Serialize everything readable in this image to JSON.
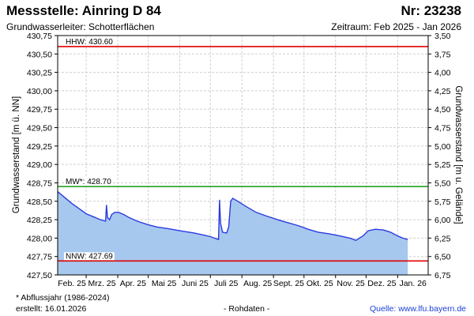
{
  "header": {
    "station": "Messstelle: Ainring D 84",
    "number": "Nr: 23238",
    "aquifer": "Grundwasserleiter:   Schotterflächen",
    "period": "Zeitraum: Feb 2025 - Jan 2026"
  },
  "footer": {
    "note": "* Abflussjahr (1986-2024)",
    "created": "erstellt:  16.01.2026",
    "raw": "- Rohdaten -",
    "source_label": "Quelle:",
    "source_url": "www.lfu.bayern.de"
  },
  "chart_data": {
    "type": "area",
    "ylabel_left": "Grundwasserstand [m ü. NN]",
    "ylabel_right": "Grundwasserstand [m u. Gelände]",
    "ylim": [
      427.5,
      430.75
    ],
    "ylim_right": [
      6.75,
      3.5
    ],
    "yticks_left": [
      "427,50",
      "427,75",
      "428,00",
      "428,25",
      "428,50",
      "428,75",
      "429,00",
      "429,25",
      "429,50",
      "429,75",
      "430,00",
      "430,25",
      "430,50",
      "430,75"
    ],
    "yticks_right": [
      "6,75",
      "6,50",
      "6,25",
      "6,00",
      "5,75",
      "5,50",
      "5,25",
      "5,00",
      "4,75",
      "4,50",
      "4,25",
      "4,00",
      "3,75",
      "3,50"
    ],
    "xticks": [
      "Feb. 25",
      "Mrz. 25",
      "Apr. 25",
      "Mai 25",
      "Juni 25",
      "Juli 25",
      "Aug. 25",
      "Sept. 25",
      "Okt. 25",
      "Nov. 25",
      "Dez. 25",
      "Jan. 26"
    ],
    "xlim": [
      "2025-02-01",
      "2026-01-31"
    ],
    "grid": true,
    "reference_lines": [
      {
        "label": "HHW: 430.60",
        "value": 430.6,
        "color": "#e00000"
      },
      {
        "label": "MW*: 428.70",
        "value": 428.7,
        "color": "#119911"
      },
      {
        "label": "NNW: 427.69",
        "value": 427.69,
        "color": "#e00000"
      }
    ],
    "series": [
      {
        "color": "#2a3be0",
        "fill": "#a7c8ee",
        "points": [
          [
            "2025-02-01",
            428.63
          ],
          [
            "2025-02-08",
            428.55
          ],
          [
            "2025-02-15",
            428.47
          ],
          [
            "2025-02-22",
            428.4
          ],
          [
            "2025-03-01",
            428.33
          ],
          [
            "2025-03-08",
            428.29
          ],
          [
            "2025-03-15",
            428.25
          ],
          [
            "2025-03-20",
            428.23
          ],
          [
            "2025-03-21",
            428.45
          ],
          [
            "2025-03-22",
            428.28
          ],
          [
            "2025-03-24",
            428.25
          ],
          [
            "2025-03-26",
            428.32
          ],
          [
            "2025-03-29",
            428.35
          ],
          [
            "2025-04-02",
            428.35
          ],
          [
            "2025-04-07",
            428.32
          ],
          [
            "2025-04-12",
            428.28
          ],
          [
            "2025-04-20",
            428.23
          ],
          [
            "2025-05-01",
            428.18
          ],
          [
            "2025-05-10",
            428.15
          ],
          [
            "2025-05-20",
            428.13
          ],
          [
            "2025-06-01",
            428.1
          ],
          [
            "2025-06-15",
            428.07
          ],
          [
            "2025-06-25",
            428.04
          ],
          [
            "2025-07-01",
            428.02
          ],
          [
            "2025-07-05",
            428.0
          ],
          [
            "2025-07-09",
            427.98
          ],
          [
            "2025-07-10",
            428.52
          ],
          [
            "2025-07-11",
            428.2
          ],
          [
            "2025-07-13",
            428.08
          ],
          [
            "2025-07-17",
            428.07
          ],
          [
            "2025-07-19",
            428.15
          ],
          [
            "2025-07-21",
            428.5
          ],
          [
            "2025-07-23",
            428.54
          ],
          [
            "2025-07-28",
            428.5
          ],
          [
            "2025-08-05",
            428.43
          ],
          [
            "2025-08-15",
            428.35
          ],
          [
            "2025-08-25",
            428.3
          ],
          [
            "2025-09-05",
            428.25
          ],
          [
            "2025-09-15",
            428.21
          ],
          [
            "2025-09-25",
            428.17
          ],
          [
            "2025-10-05",
            428.12
          ],
          [
            "2025-10-15",
            428.08
          ],
          [
            "2025-10-25",
            428.06
          ],
          [
            "2025-11-05",
            428.03
          ],
          [
            "2025-11-15",
            428.0
          ],
          [
            "2025-11-21",
            427.97
          ],
          [
            "2025-11-28",
            428.03
          ],
          [
            "2025-12-03",
            428.1
          ],
          [
            "2025-12-10",
            428.12
          ],
          [
            "2025-12-18",
            428.11
          ],
          [
            "2025-12-25",
            428.08
          ],
          [
            "2026-01-01",
            428.03
          ],
          [
            "2026-01-06",
            428.0
          ],
          [
            "2026-01-11",
            427.98
          ]
        ]
      }
    ]
  }
}
